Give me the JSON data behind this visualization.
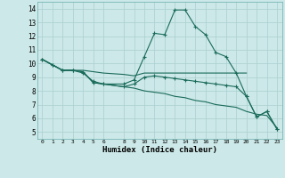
{
  "xlabel": "Humidex (Indice chaleur)",
  "bg_color": "#cce8e8",
  "grid_color": "#aacfcf",
  "line_color": "#1a6b5a",
  "xlim": [
    -0.5,
    23.5
  ],
  "ylim": [
    4.5,
    14.5
  ],
  "xticks": [
    0,
    1,
    2,
    3,
    4,
    5,
    6,
    8,
    9,
    10,
    11,
    12,
    13,
    14,
    15,
    16,
    17,
    18,
    19,
    20,
    21,
    22,
    23
  ],
  "yticks": [
    5,
    6,
    7,
    8,
    9,
    10,
    11,
    12,
    13,
    14
  ],
  "line1_x": [
    0,
    1,
    2,
    3,
    4,
    5,
    6,
    8,
    9,
    10,
    11,
    12,
    13,
    14,
    15,
    16,
    17,
    18,
    19,
    20,
    21,
    22,
    23
  ],
  "line1_y": [
    10.3,
    9.9,
    9.5,
    9.5,
    9.4,
    8.6,
    8.5,
    8.5,
    8.8,
    10.5,
    12.2,
    12.1,
    13.9,
    13.9,
    12.7,
    12.1,
    10.8,
    10.5,
    9.3,
    7.6,
    6.1,
    6.5,
    5.2
  ],
  "line2_x": [
    0,
    1,
    2,
    3,
    4,
    5,
    6,
    8,
    9,
    10,
    11,
    12,
    13,
    14,
    15,
    16,
    17,
    18,
    19,
    20
  ],
  "line2_y": [
    10.3,
    9.9,
    9.5,
    9.5,
    9.5,
    9.4,
    9.3,
    9.2,
    9.1,
    9.3,
    9.3,
    9.3,
    9.3,
    9.3,
    9.3,
    9.3,
    9.3,
    9.3,
    9.3,
    9.3
  ],
  "line3_x": [
    0,
    1,
    2,
    3,
    4,
    5,
    6,
    8,
    9,
    10,
    11,
    12,
    13,
    14,
    15,
    16,
    17,
    18,
    19,
    20,
    21,
    22,
    23
  ],
  "line3_y": [
    10.3,
    9.9,
    9.5,
    9.5,
    9.3,
    8.7,
    8.5,
    8.3,
    8.5,
    9.0,
    9.1,
    9.0,
    8.9,
    8.8,
    8.7,
    8.6,
    8.5,
    8.4,
    8.3,
    7.6,
    6.1,
    6.5,
    5.2
  ],
  "line4_x": [
    0,
    1,
    2,
    3,
    4,
    5,
    6,
    8,
    9,
    10,
    11,
    12,
    13,
    14,
    15,
    16,
    17,
    18,
    19,
    20,
    21,
    22,
    23
  ],
  "line4_y": [
    10.3,
    9.9,
    9.5,
    9.5,
    9.4,
    8.6,
    8.5,
    8.3,
    8.2,
    8.0,
    7.9,
    7.8,
    7.6,
    7.5,
    7.3,
    7.2,
    7.0,
    6.9,
    6.8,
    6.5,
    6.3,
    6.2,
    5.3
  ]
}
